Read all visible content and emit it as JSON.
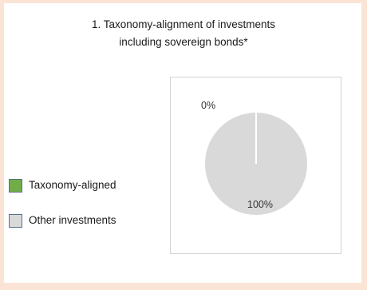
{
  "chart_data": {
    "type": "pie",
    "title_lines": [
      "1. Taxonomy-alignment of investments",
      "including sovereign bonds*"
    ],
    "categories": [
      "Taxonomy-aligned",
      "Other investments"
    ],
    "values": [
      0,
      100
    ],
    "data_labels": [
      "0%",
      "100%"
    ],
    "colors": [
      "#70ad47",
      "#d9d9d9"
    ],
    "legend_position": "left",
    "legend_border_color": "#5a6f8a"
  }
}
